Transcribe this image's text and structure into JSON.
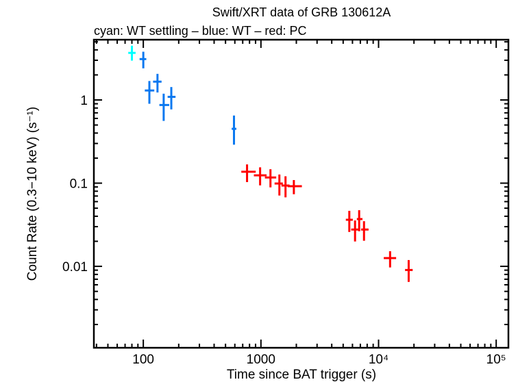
{
  "chart_data": {
    "type": "scatter",
    "title": "Swift/XRT data of GRB 130612A",
    "subtitle": "cyan: WT settling – blue: WT – red: PC",
    "xlabel": "Time since BAT trigger (s)",
    "ylabel": "Count Rate (0.3−10 keV) (s⁻¹)",
    "xscale": "log",
    "yscale": "log",
    "xlim": [
      38,
      127000
    ],
    "ylim": [
      0.00105,
      5.3
    ],
    "grid": false,
    "x_ticks": [
      {
        "value": 100,
        "label": "100"
      },
      {
        "value": 1000,
        "label": "1000"
      },
      {
        "value": 10000,
        "label": "10⁴"
      },
      {
        "value": 100000,
        "label": "10⁵"
      }
    ],
    "y_ticks": [
      {
        "value": 1,
        "label": "1"
      },
      {
        "value": 0.1,
        "label": "0.1"
      },
      {
        "value": 0.01,
        "label": "0.01"
      }
    ],
    "series": [
      {
        "mode": "WT settling",
        "color": "#00ffff",
        "points": [
          {
            "x": 80,
            "xlo": 74.5,
            "xhi": 86,
            "y": 3.68,
            "ylo": 2.97,
            "yhi": 4.49
          }
        ]
      },
      {
        "mode": "WT",
        "color": "#0a78f0",
        "points": [
          {
            "x": 100,
            "xlo": 93,
            "xhi": 106,
            "y": 3.1,
            "ylo": 2.4,
            "yhi": 3.8
          },
          {
            "x": 112.6,
            "xlo": 103,
            "xhi": 124,
            "y": 1.3,
            "ylo": 0.9,
            "yhi": 1.69
          },
          {
            "x": 132,
            "xlo": 121,
            "xhi": 143,
            "y": 1.66,
            "ylo": 1.23,
            "yhi": 2.06
          },
          {
            "x": 149,
            "xlo": 137,
            "xhi": 166,
            "y": 0.87,
            "ylo": 0.56,
            "yhi": 1.19
          },
          {
            "x": 173,
            "xlo": 161,
            "xhi": 188,
            "y": 1.09,
            "ylo": 0.77,
            "yhi": 1.43
          },
          {
            "x": 590,
            "xlo": 564,
            "xhi": 618,
            "y": 0.45,
            "ylo": 0.29,
            "yhi": 0.65
          }
        ]
      },
      {
        "mode": "PC",
        "color": "#ff0000",
        "points": [
          {
            "x": 762,
            "xlo": 681,
            "xhi": 903,
            "y": 0.137,
            "ylo": 0.103,
            "yhi": 0.168
          },
          {
            "x": 984,
            "xlo": 871,
            "xhi": 1117,
            "y": 0.124,
            "ylo": 0.094,
            "yhi": 0.155
          },
          {
            "x": 1205,
            "xlo": 1081,
            "xhi": 1349,
            "y": 0.117,
            "ylo": 0.089,
            "yhi": 0.147
          },
          {
            "x": 1435,
            "xlo": 1306,
            "xhi": 1535,
            "y": 0.099,
            "ylo": 0.071,
            "yhi": 0.127
          },
          {
            "x": 1618,
            "xlo": 1494,
            "xhi": 1750,
            "y": 0.0936,
            "ylo": 0.0675,
            "yhi": 0.121
          },
          {
            "x": 1905,
            "xlo": 1687,
            "xhi": 2229,
            "y": 0.0918,
            "ylo": 0.0736,
            "yhi": 0.109
          },
          {
            "x": 5640,
            "xlo": 5270,
            "xhi": 6040,
            "y": 0.0363,
            "ylo": 0.0259,
            "yhi": 0.0465
          },
          {
            "x": 6310,
            "xlo": 5850,
            "xhi": 6840,
            "y": 0.0277,
            "ylo": 0.0199,
            "yhi": 0.0356
          },
          {
            "x": 6840,
            "xlo": 6540,
            "xhi": 7300,
            "y": 0.037,
            "ylo": 0.0264,
            "yhi": 0.0473
          },
          {
            "x": 7520,
            "xlo": 7100,
            "xhi": 8220,
            "y": 0.0277,
            "ylo": 0.0203,
            "yhi": 0.0349
          },
          {
            "x": 12530,
            "xlo": 11070,
            "xhi": 14100,
            "y": 0.01256,
            "ylo": 0.0097,
            "yhi": 0.0152
          },
          {
            "x": 18030,
            "xlo": 16790,
            "xhi": 19500,
            "y": 0.00904,
            "ylo": 0.0065,
            "yhi": 0.0119
          }
        ]
      }
    ]
  }
}
